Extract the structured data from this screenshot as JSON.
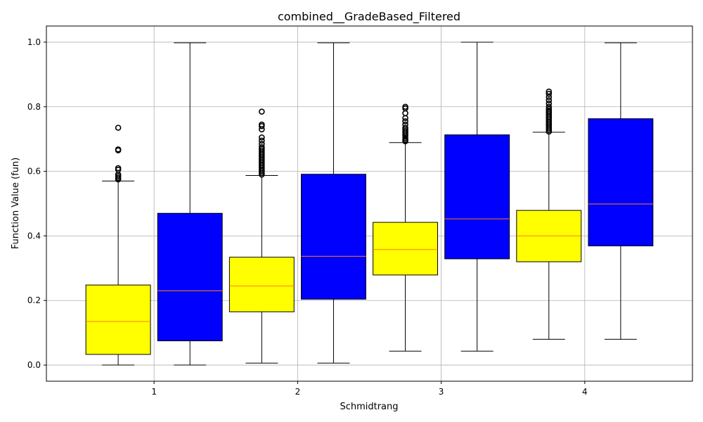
{
  "chart_data": {
    "type": "box",
    "title": "combined__GradeBased_Filtered",
    "xlabel": "Schmidtrang",
    "ylabel": "Function Value (fun)",
    "xlim": [
      0.25,
      4.75
    ],
    "ylim": [
      -0.05,
      1.05
    ],
    "xticks": [
      1,
      2,
      3,
      4
    ],
    "xtick_labels": [
      "1",
      "2",
      "3",
      "4"
    ],
    "yticks": [
      0.0,
      0.2,
      0.4,
      0.6,
      0.8,
      1.0
    ],
    "ytick_labels": [
      "0.0",
      "0.2",
      "0.4",
      "0.6",
      "0.8",
      "1.0"
    ],
    "grid": true,
    "colors": {
      "yellow": "#ffff00",
      "blue": "#0000ff",
      "median": "#ff7f0e",
      "edge": "#000000",
      "grid": "#b0b0b0"
    },
    "boxes": [
      {
        "position": 0.75,
        "fill": "yellow",
        "whisker_low": 0.0,
        "q1": 0.033,
        "median": 0.135,
        "q3": 0.248,
        "whisker_high": 0.57,
        "outliers": [
          0.575,
          0.58,
          0.585,
          0.59,
          0.605,
          0.61,
          0.665,
          0.668,
          0.735
        ]
      },
      {
        "position": 1.25,
        "fill": "blue",
        "whisker_low": 0.0,
        "q1": 0.075,
        "median": 0.23,
        "q3": 0.47,
        "whisker_high": 0.998,
        "outliers": []
      },
      {
        "position": 1.75,
        "fill": "yellow",
        "whisker_low": 0.006,
        "q1": 0.165,
        "median": 0.245,
        "q3": 0.334,
        "whisker_high": 0.587,
        "outliers": [
          0.59,
          0.595,
          0.6,
          0.605,
          0.61,
          0.615,
          0.62,
          0.625,
          0.63,
          0.635,
          0.64,
          0.645,
          0.65,
          0.655,
          0.66,
          0.665,
          0.67,
          0.675,
          0.685,
          0.695,
          0.705,
          0.73,
          0.74,
          0.745,
          0.785
        ]
      },
      {
        "position": 2.25,
        "fill": "blue",
        "whisker_low": 0.006,
        "q1": 0.204,
        "median": 0.337,
        "q3": 0.591,
        "whisker_high": 0.998,
        "outliers": []
      },
      {
        "position": 2.75,
        "fill": "yellow",
        "whisker_low": 0.043,
        "q1": 0.279,
        "median": 0.358,
        "q3": 0.442,
        "whisker_high": 0.689,
        "outliers": [
          0.693,
          0.698,
          0.703,
          0.71,
          0.715,
          0.72,
          0.725,
          0.73,
          0.735,
          0.745,
          0.755,
          0.765,
          0.78,
          0.795,
          0.8
        ]
      },
      {
        "position": 3.25,
        "fill": "blue",
        "whisker_low": 0.043,
        "q1": 0.329,
        "median": 0.453,
        "q3": 0.713,
        "whisker_high": 1.0,
        "outliers": []
      },
      {
        "position": 3.75,
        "fill": "yellow",
        "whisker_low": 0.08,
        "q1": 0.32,
        "median": 0.4,
        "q3": 0.479,
        "whisker_high": 0.721,
        "outliers": [
          0.723,
          0.728,
          0.733,
          0.738,
          0.743,
          0.748,
          0.753,
          0.758,
          0.763,
          0.768,
          0.773,
          0.778,
          0.783,
          0.788,
          0.793,
          0.8,
          0.81,
          0.82,
          0.83,
          0.84,
          0.847
        ]
      },
      {
        "position": 4.25,
        "fill": "blue",
        "whisker_low": 0.08,
        "q1": 0.369,
        "median": 0.499,
        "q3": 0.763,
        "whisker_high": 0.998,
        "outliers": []
      }
    ]
  }
}
